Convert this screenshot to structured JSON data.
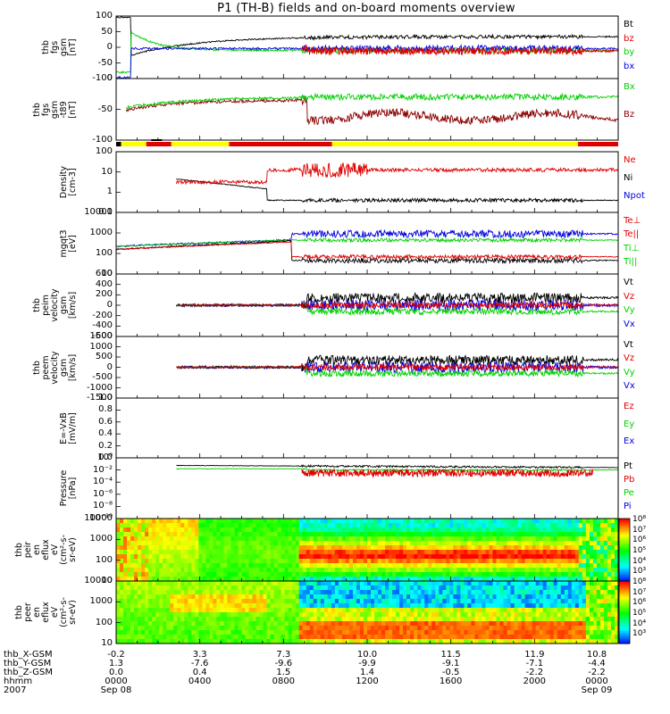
{
  "title": "P1 (TH-B) fields and on-board moments overview",
  "colors": {
    "black": "#000000",
    "red": "#e00000",
    "green": "#00d000",
    "blue": "#0000e0",
    "darkred": "#8b0000",
    "yellow": "#ffff00"
  },
  "chart_data": [
    {
      "type": "line",
      "ylabel": "thb\nfgs\ngsm\n[nT]",
      "ylim": [
        -100,
        100
      ],
      "yticks": [
        "100",
        "50",
        "0",
        "-50",
        "-100"
      ],
      "series": [
        {
          "name": "Bt"
        },
        {
          "name": "bz"
        },
        {
          "name": "by"
        },
        {
          "name": "bx"
        }
      ]
    },
    {
      "type": "line",
      "ylabel": "thb\nfgs\ngsm\n-t89\n[nT]",
      "ylim": [
        -120,
        20
      ],
      "yticks": [
        "0",
        "-50",
        "-100"
      ],
      "series": [
        {
          "name": "Bx"
        },
        {
          "name": "Bz"
        }
      ]
    },
    {
      "type": "line",
      "ylabel": "Density\n[cm-3]",
      "scale": "log",
      "ylim": [
        0.05,
        100
      ],
      "yticks": [
        "100",
        "10",
        "1",
        "0.1"
      ],
      "series": [
        {
          "name": "Ne"
        },
        {
          "name": "Ni"
        },
        {
          "name": "Npot"
        }
      ]
    },
    {
      "type": "line",
      "ylabel": "mgqt3\n[eV]",
      "scale": "log",
      "ylim": [
        10,
        10000
      ],
      "yticks": [
        "10000",
        "1000",
        "100",
        "10"
      ],
      "series": [
        {
          "name": "Te⊥"
        },
        {
          "name": "Te||"
        },
        {
          "name": "Ti⊥"
        },
        {
          "name": "Ti||"
        }
      ]
    },
    {
      "type": "line",
      "ylabel": "thb\npeim\nvelocity\ngsm\n[km/s]",
      "ylim": [
        -600,
        600
      ],
      "yticks": [
        "600",
        "400",
        "200",
        "0",
        "-200",
        "-400",
        "-600"
      ],
      "series": [
        {
          "name": "Vt"
        },
        {
          "name": "Vz"
        },
        {
          "name": "Vy"
        },
        {
          "name": "Vx"
        }
      ]
    },
    {
      "type": "line",
      "ylabel": "thb\npeem\nvelocity\ngsm\n[km/s]",
      "ylim": [
        -1500,
        1500
      ],
      "yticks": [
        "1500",
        "1000",
        "500",
        "0",
        "-500",
        "-1000",
        "-1500"
      ],
      "series": [
        {
          "name": "Vt"
        },
        {
          "name": "Vz"
        },
        {
          "name": "Vy"
        },
        {
          "name": "Vx"
        }
      ]
    },
    {
      "type": "line",
      "ylabel": "E=-VxB\n[mV/m]",
      "ylim": [
        0.0,
        1.0
      ],
      "yticks": [
        "1.0",
        "0.8",
        "0.6",
        "0.4",
        "0.2",
        "0.0"
      ],
      "series": [
        {
          "name": "Ez"
        },
        {
          "name": "Ey"
        },
        {
          "name": "Ex"
        }
      ]
    },
    {
      "type": "line",
      "ylabel": "Pressure\n[nPa]",
      "scale": "log",
      "yticks": [
        "10⁰",
        "10⁻²",
        "10⁻⁴",
        "10⁻⁶",
        "10⁻⁸",
        "10⁻¹⁰"
      ],
      "series": [
        {
          "name": "Pt"
        },
        {
          "name": "Pb"
        },
        {
          "name": "Pe"
        },
        {
          "name": "Pi"
        }
      ]
    },
    {
      "type": "heatmap",
      "ylabel": "thb\npeir\nen\neflux\neV\n(cm²-s-\nsr-eV)",
      "yticks": [
        "10000",
        "1000",
        "100",
        "10"
      ],
      "colorbar_ticks": [
        "10⁸",
        "10⁷",
        "10⁶",
        "10⁵",
        "10⁴",
        "10³"
      ]
    },
    {
      "type": "heatmap",
      "ylabel": "thb\npeer\nen\neflux\neV\n(cm²-s-\nsr-eV)",
      "yticks": [
        "10000",
        "1000",
        "100",
        "10"
      ],
      "colorbar_ticks": [
        "10⁸",
        "10⁷",
        "10⁶",
        "10⁵",
        "10⁴",
        "10³"
      ]
    }
  ],
  "footer": {
    "row_labels": [
      "thb_X-GSM",
      "thb_Y-GSM",
      "thb_Z-GSM",
      "hhmm",
      "2007"
    ],
    "columns": [
      {
        "x": "-0.2",
        "y": "1.3",
        "z": "0.0",
        "time": "0000",
        "date": "Sep 08"
      },
      {
        "x": "3.3",
        "y": "-7.6",
        "z": "0.4",
        "time": "0400",
        "date": ""
      },
      {
        "x": "7.3",
        "y": "-9.6",
        "z": "1.5",
        "time": "0800",
        "date": ""
      },
      {
        "x": "10.0",
        "y": "-9.9",
        "z": "1.4",
        "time": "1200",
        "date": ""
      },
      {
        "x": "11.5",
        "y": "-9.1",
        "z": "-0.5",
        "time": "1600",
        "date": ""
      },
      {
        "x": "11.9",
        "y": "-7.1",
        "z": "-2.2",
        "time": "2000",
        "date": ""
      },
      {
        "x": "10.8",
        "y": "-4.4",
        "z": "-2.2",
        "time": "0000",
        "date": "Sep 09"
      }
    ]
  }
}
